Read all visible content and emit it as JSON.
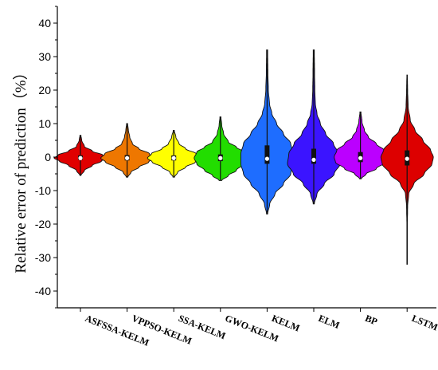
{
  "chart_data": {
    "type": "violin",
    "title": "",
    "xlabel": "",
    "ylabel": "Relative error of prediction（%）",
    "ylim": [
      -45,
      45
    ],
    "yticks": [
      -40,
      -30,
      -20,
      -10,
      0,
      10,
      20,
      30,
      40
    ],
    "grid": false,
    "legend": "none",
    "categories": [
      "ASFSSA-KELM",
      "VPPSO-KELM",
      "SSA-KELM",
      "GWO-KELM",
      "KELM",
      "ELM",
      "BP",
      "LSTM"
    ],
    "series": [
      {
        "color": "#e00000",
        "min": -5.5,
        "max": 6.5,
        "q1": -0.8,
        "median": -0.3,
        "q3": 0.5,
        "profile": [
          [
            -5.5,
            0.02
          ],
          [
            -4,
            0.15
          ],
          [
            -2.5,
            0.45
          ],
          [
            -1.2,
            0.8
          ],
          [
            -0.3,
            1.0
          ],
          [
            0.6,
            0.85
          ],
          [
            1.8,
            0.45
          ],
          [
            3.2,
            0.15
          ],
          [
            5,
            0.05
          ],
          [
            6.5,
            0.02
          ]
        ]
      },
      {
        "color": "#ee7700",
        "min": -6,
        "max": 10,
        "q1": -1.0,
        "median": -0.3,
        "q3": 0.6,
        "profile": [
          [
            -6,
            0.03
          ],
          [
            -4.5,
            0.15
          ],
          [
            -3,
            0.45
          ],
          [
            -1.5,
            0.82
          ],
          [
            -0.3,
            1.0
          ],
          [
            1,
            0.85
          ],
          [
            2.5,
            0.45
          ],
          [
            4,
            0.2
          ],
          [
            6,
            0.1
          ],
          [
            8,
            0.05
          ],
          [
            10,
            0.02
          ]
        ]
      },
      {
        "color": "#ffff00",
        "min": -6,
        "max": 8,
        "q1": -1.0,
        "median": -0.3,
        "q3": 0.5,
        "profile": [
          [
            -6,
            0.03
          ],
          [
            -4.5,
            0.15
          ],
          [
            -3,
            0.45
          ],
          [
            -1.5,
            0.82
          ],
          [
            -0.3,
            1.0
          ],
          [
            1,
            0.85
          ],
          [
            2.5,
            0.45
          ],
          [
            4,
            0.2
          ],
          [
            6,
            0.08
          ],
          [
            8,
            0.02
          ]
        ]
      },
      {
        "color": "#22dd00",
        "min": -7,
        "max": 12,
        "q1": -1.2,
        "median": -0.3,
        "q3": 0.8,
        "profile": [
          [
            -7,
            0.05
          ],
          [
            -5.5,
            0.3
          ],
          [
            -4,
            0.6
          ],
          [
            -2,
            0.9
          ],
          [
            -0.3,
            1.0
          ],
          [
            1.5,
            0.9
          ],
          [
            3,
            0.6
          ],
          [
            4.5,
            0.3
          ],
          [
            7,
            0.12
          ],
          [
            9.5,
            0.05
          ],
          [
            12,
            0.02
          ]
        ]
      },
      {
        "color": "#1e6dff",
        "min": -17,
        "max": 32,
        "q1": -2.0,
        "median": -0.5,
        "q3": 3.5,
        "profile": [
          [
            -17,
            0.02
          ],
          [
            -14,
            0.1
          ],
          [
            -11,
            0.3
          ],
          [
            -8,
            0.62
          ],
          [
            -5,
            0.9
          ],
          [
            -2,
            1.0
          ],
          [
            1,
            1.0
          ],
          [
            4,
            0.9
          ],
          [
            7,
            0.62
          ],
          [
            10,
            0.36
          ],
          [
            13,
            0.18
          ],
          [
            16,
            0.09
          ],
          [
            20,
            0.05
          ],
          [
            25,
            0.03
          ],
          [
            32,
            0.02
          ]
        ]
      },
      {
        "color": "#3b14ff",
        "min": -14,
        "max": 32,
        "q1": -2.0,
        "median": -0.8,
        "q3": 2.5,
        "profile": [
          [
            -14,
            0.02
          ],
          [
            -11,
            0.12
          ],
          [
            -8,
            0.4
          ],
          [
            -5,
            0.78
          ],
          [
            -2,
            1.0
          ],
          [
            1,
            0.95
          ],
          [
            4,
            0.75
          ],
          [
            7,
            0.45
          ],
          [
            10,
            0.25
          ],
          [
            13,
            0.12
          ],
          [
            16,
            0.06
          ],
          [
            20,
            0.04
          ],
          [
            25,
            0.03
          ],
          [
            32,
            0.02
          ]
        ]
      },
      {
        "color": "#bb00ff",
        "min": -6.5,
        "max": 13.5,
        "q1": -1.5,
        "median": -0.3,
        "q3": 1.5,
        "profile": [
          [
            -6.5,
            0.03
          ],
          [
            -5,
            0.22
          ],
          [
            -3.5,
            0.6
          ],
          [
            -1.5,
            0.95
          ],
          [
            0,
            1.0
          ],
          [
            2,
            0.9
          ],
          [
            4,
            0.6
          ],
          [
            6,
            0.3
          ],
          [
            8,
            0.15
          ],
          [
            10.5,
            0.06
          ],
          [
            13.5,
            0.02
          ]
        ]
      },
      {
        "color": "#dd0000",
        "min": -32,
        "max": 24.5,
        "q1": -2.5,
        "median": -0.5,
        "q3": 2.0,
        "profile": [
          [
            -32,
            0.01
          ],
          [
            -20,
            0.01
          ],
          [
            -15,
            0.02
          ],
          [
            -11,
            0.06
          ],
          [
            -8,
            0.25
          ],
          [
            -5,
            0.65
          ],
          [
            -2,
            0.95
          ],
          [
            0,
            1.0
          ],
          [
            2,
            0.9
          ],
          [
            5,
            0.6
          ],
          [
            8,
            0.3
          ],
          [
            11,
            0.12
          ],
          [
            15,
            0.04
          ],
          [
            20,
            0.02
          ],
          [
            24.5,
            0.01
          ]
        ]
      }
    ]
  }
}
